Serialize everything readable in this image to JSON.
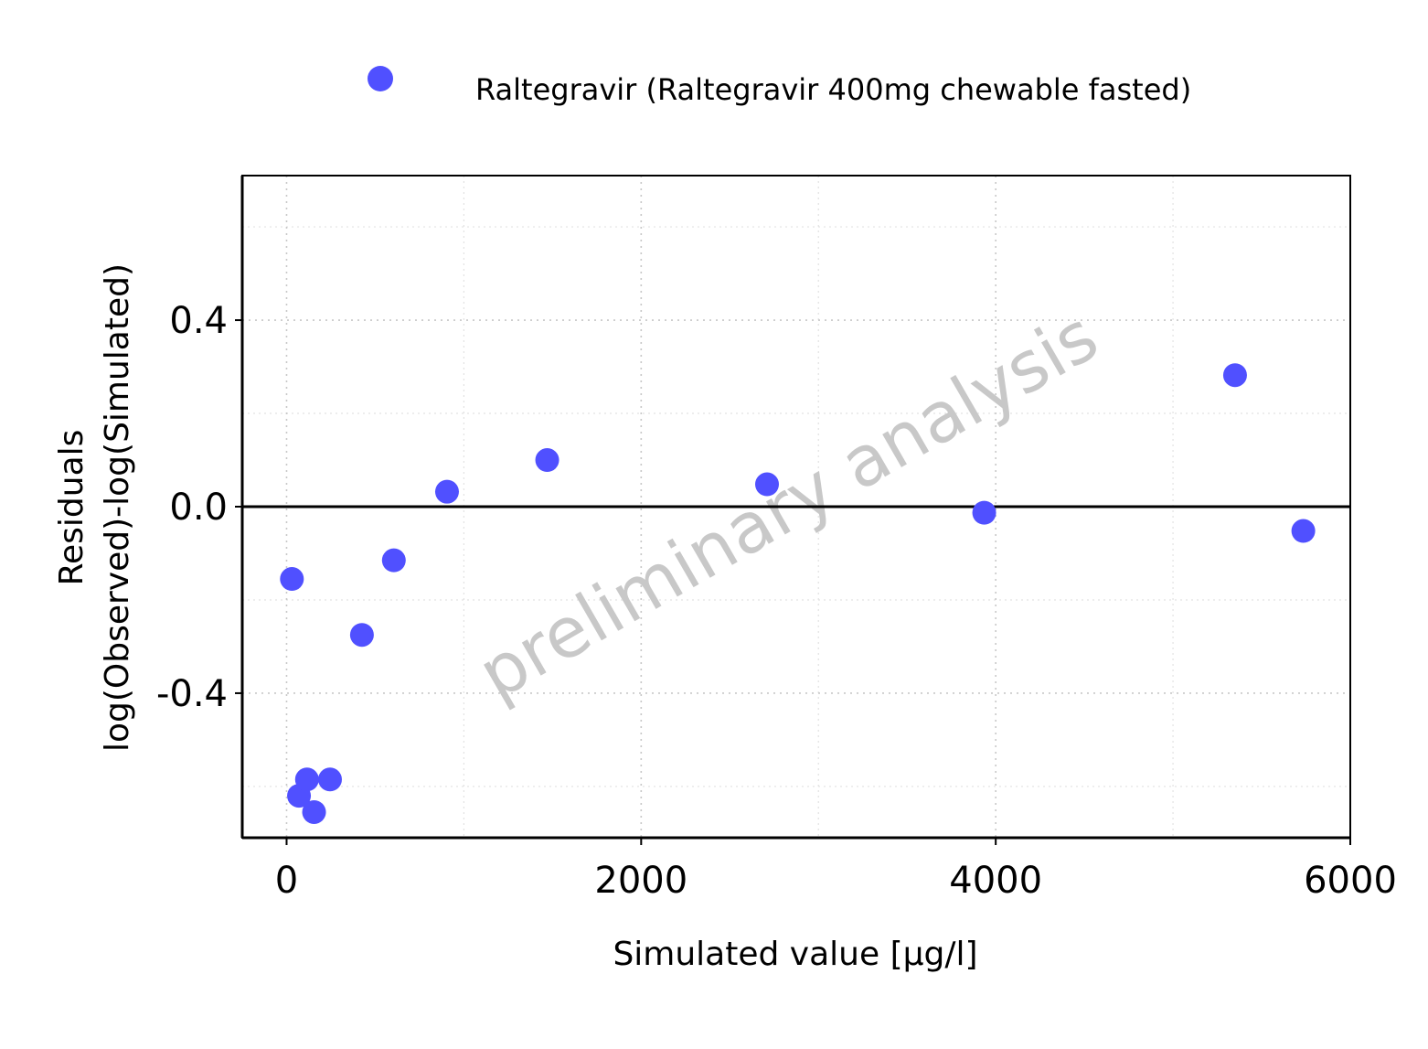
{
  "chart_data": {
    "type": "scatter",
    "title": "",
    "xlabel": "Simulated value [µg/l]",
    "ylabel_lines": [
      "Residuals",
      "log(Observed)-log(Simulated)"
    ],
    "xlim": [
      -250,
      6000
    ],
    "ylim": [
      -0.71,
      0.71
    ],
    "x_ticks": [
      0,
      2000,
      4000,
      6000
    ],
    "x_tick_labels": [
      "0",
      "2000",
      "4000",
      "6000"
    ],
    "y_ticks": [
      -0.4,
      0.0,
      0.4
    ],
    "y_tick_labels": [
      "-0.4",
      "0.0",
      "0.4"
    ],
    "x_minor_grid": [
      1000,
      3000,
      5000
    ],
    "y_minor_grid": [
      -0.6,
      -0.2,
      0.2,
      0.6
    ],
    "grid": true,
    "reference_line_y": 0,
    "legend_position": "top",
    "watermark": "preliminary analysis",
    "series": [
      {
        "name": "Raltegravir (Raltegravir 400mg chewable fasted)",
        "color": "#5050ff",
        "marker": "circle",
        "points": [
          {
            "x": 30,
            "y": -0.155
          },
          {
            "x": 70,
            "y": -0.62
          },
          {
            "x": 115,
            "y": -0.585
          },
          {
            "x": 155,
            "y": -0.655
          },
          {
            "x": 245,
            "y": -0.585
          },
          {
            "x": 425,
            "y": -0.275
          },
          {
            "x": 605,
            "y": -0.115
          },
          {
            "x": 905,
            "y": 0.032
          },
          {
            "x": 1470,
            "y": 0.1
          },
          {
            "x": 2710,
            "y": 0.048
          },
          {
            "x": 3935,
            "y": -0.013
          },
          {
            "x": 5350,
            "y": 0.282
          },
          {
            "x": 5735,
            "y": -0.052
          }
        ]
      }
    ]
  }
}
